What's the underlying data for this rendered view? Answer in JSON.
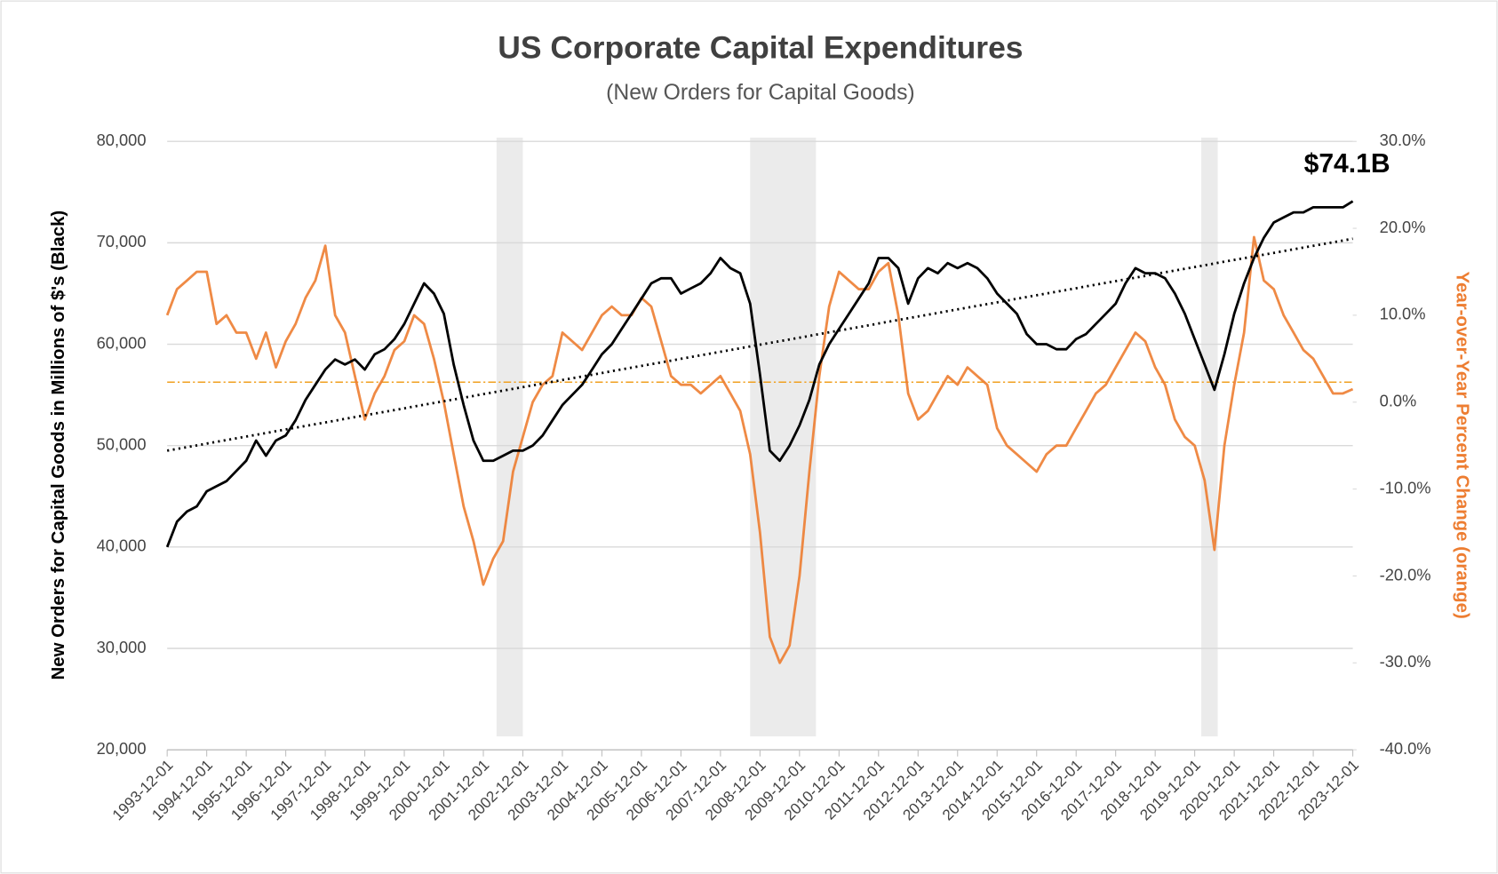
{
  "chart_data": {
    "type": "line",
    "title": "US Corporate Capital Expenditures",
    "subtitle": "(New Orders for Capital Goods)",
    "ylabel": "New Orders for Capital Goods in Millions of $'s (Black)",
    "y2label": "Year-over-Year Percent Change (orange)",
    "annotation": "$74.1B",
    "ylim": [
      20000,
      80000
    ],
    "yticks": [
      {
        "value": 20000,
        "label": "20,000"
      },
      {
        "value": 30000,
        "label": "30,000"
      },
      {
        "value": 40000,
        "label": "40,000"
      },
      {
        "value": 50000,
        "label": "50,000"
      },
      {
        "value": 60000,
        "label": "60,000"
      },
      {
        "value": 70000,
        "label": "70,000"
      },
      {
        "value": 80000,
        "label": "80,000"
      }
    ],
    "y2lim": [
      -40,
      30
    ],
    "y2ticks": [
      {
        "value": -40,
        "label": "-40.0%"
      },
      {
        "value": -30,
        "label": "-30.0%"
      },
      {
        "value": -20,
        "label": "-20.0%"
      },
      {
        "value": -10,
        "label": "-10.0%"
      },
      {
        "value": 0,
        "label": "0.0%"
      },
      {
        "value": 10,
        "label": "10.0%"
      },
      {
        "value": 20,
        "label": "20.0%"
      },
      {
        "value": 30,
        "label": "30.0%"
      }
    ],
    "xlim": [
      "1993-12-01",
      "2023-12-01"
    ],
    "xticks": [
      "1993-12-01",
      "1994-12-01",
      "1995-12-01",
      "1996-12-01",
      "1997-12-01",
      "1998-12-01",
      "1999-12-01",
      "2000-12-01",
      "2001-12-01",
      "2002-12-01",
      "2003-12-01",
      "2004-12-01",
      "2005-12-01",
      "2006-12-01",
      "2007-12-01",
      "2008-12-01",
      "2009-12-01",
      "2010-12-01",
      "2011-12-01",
      "2012-12-01",
      "2013-12-01",
      "2014-12-01",
      "2015-12-01",
      "2016-12-01",
      "2017-12-01",
      "2018-12-01",
      "2019-12-01",
      "2020-12-01",
      "2021-12-01",
      "2022-12-01",
      "2023-12-01"
    ],
    "grid": true,
    "x": [
      "1993-12-01",
      "1994-03-01",
      "1994-06-01",
      "1994-09-01",
      "1994-12-01",
      "1995-03-01",
      "1995-06-01",
      "1995-09-01",
      "1995-12-01",
      "1996-03-01",
      "1996-06-01",
      "1996-09-01",
      "1996-12-01",
      "1997-03-01",
      "1997-06-01",
      "1997-09-01",
      "1997-12-01",
      "1998-03-01",
      "1998-06-01",
      "1998-09-01",
      "1998-12-01",
      "1999-03-01",
      "1999-06-01",
      "1999-09-01",
      "1999-12-01",
      "2000-03-01",
      "2000-06-01",
      "2000-09-01",
      "2000-12-01",
      "2001-03-01",
      "2001-06-01",
      "2001-09-01",
      "2001-12-01",
      "2002-03-01",
      "2002-06-01",
      "2002-09-01",
      "2002-12-01",
      "2003-03-01",
      "2003-06-01",
      "2003-09-01",
      "2003-12-01",
      "2004-03-01",
      "2004-06-01",
      "2004-09-01",
      "2004-12-01",
      "2005-03-01",
      "2005-06-01",
      "2005-09-01",
      "2005-12-01",
      "2006-03-01",
      "2006-06-01",
      "2006-09-01",
      "2006-12-01",
      "2007-03-01",
      "2007-06-01",
      "2007-09-01",
      "2007-12-01",
      "2008-03-01",
      "2008-06-01",
      "2008-09-01",
      "2008-12-01",
      "2009-03-01",
      "2009-06-01",
      "2009-09-01",
      "2009-12-01",
      "2010-03-01",
      "2010-06-01",
      "2010-09-01",
      "2010-12-01",
      "2011-03-01",
      "2011-06-01",
      "2011-09-01",
      "2011-12-01",
      "2012-03-01",
      "2012-06-01",
      "2012-09-01",
      "2012-12-01",
      "2013-03-01",
      "2013-06-01",
      "2013-09-01",
      "2013-12-01",
      "2014-03-01",
      "2014-06-01",
      "2014-09-01",
      "2014-12-01",
      "2015-03-01",
      "2015-06-01",
      "2015-09-01",
      "2015-12-01",
      "2016-03-01",
      "2016-06-01",
      "2016-09-01",
      "2016-12-01",
      "2017-03-01",
      "2017-06-01",
      "2017-09-01",
      "2017-12-01",
      "2018-03-01",
      "2018-06-01",
      "2018-09-01",
      "2018-12-01",
      "2019-03-01",
      "2019-06-01",
      "2019-09-01",
      "2019-12-01",
      "2020-03-01",
      "2020-06-01",
      "2020-09-01",
      "2020-12-01",
      "2021-03-01",
      "2021-06-01",
      "2021-09-01",
      "2021-12-01",
      "2022-03-01",
      "2022-06-01",
      "2022-09-01",
      "2022-12-01",
      "2023-03-01",
      "2023-06-01",
      "2023-09-01",
      "2023-12-01"
    ],
    "series": [
      {
        "color": "#000000",
        "values": [
          40000,
          42500,
          43500,
          44000,
          45500,
          46000,
          46500,
          47500,
          48500,
          50500,
          49000,
          50500,
          51000,
          52500,
          54500,
          56000,
          57500,
          58500,
          58000,
          58500,
          57500,
          59000,
          59500,
          60500,
          62000,
          64000,
          66000,
          65000,
          63000,
          58000,
          54000,
          50500,
          48500,
          48500,
          49000,
          49500,
          49500,
          50000,
          51000,
          52500,
          54000,
          55000,
          56000,
          57500,
          59000,
          60000,
          61500,
          63000,
          64500,
          66000,
          66500,
          66500,
          65000,
          65500,
          66000,
          67000,
          68500,
          67500,
          67000,
          64000,
          57000,
          49500,
          48500,
          50000,
          52000,
          54500,
          58000,
          60000,
          61500,
          63000,
          64500,
          66000,
          68500,
          68500,
          67500,
          64000,
          66500,
          67500,
          67000,
          68000,
          67500,
          68000,
          67500,
          66500,
          65000,
          64000,
          63000,
          61000,
          60000,
          60000,
          59500,
          59500,
          60500,
          61000,
          62000,
          63000,
          64000,
          66000,
          67500,
          67000,
          67000,
          66500,
          65000,
          63000,
          60500,
          58000,
          55500,
          59000,
          63000,
          66000,
          68500,
          70500,
          72000,
          72500,
          73000,
          73000,
          73500,
          73500,
          73500,
          73500,
          74100
        ]
      },
      {
        "color": "#ed7d31",
        "axis": "y2",
        "values": [
          10,
          13,
          14,
          15,
          15,
          9,
          10,
          8,
          8,
          5,
          8,
          4,
          7,
          9,
          12,
          14,
          18,
          10,
          8,
          3,
          -2,
          1,
          3,
          6,
          7,
          10,
          9,
          5,
          0,
          -6,
          -12,
          -16,
          -21,
          -18,
          -16,
          -8,
          -4,
          0,
          2,
          3,
          8,
          7,
          6,
          8,
          10,
          11,
          10,
          10,
          12,
          11,
          7,
          3,
          2,
          2,
          1,
          2,
          3,
          1,
          -1,
          -6,
          -15,
          -27,
          -30,
          -28,
          -20,
          -8,
          3,
          11,
          15,
          14,
          13,
          13,
          15,
          16,
          10,
          1,
          -2,
          -1,
          1,
          3,
          2,
          4,
          3,
          2,
          -3,
          -5,
          -6,
          -7,
          -8,
          -6,
          -5,
          -5,
          -3,
          -1,
          1,
          2,
          4,
          6,
          8,
          7,
          4,
          2,
          -2,
          -4,
          -5,
          -9,
          -17,
          -5,
          2,
          8,
          19,
          14,
          13,
          10,
          8,
          6,
          5,
          3,
          1,
          1,
          1.5
        ]
      }
    ],
    "trendline": {
      "x": [
        "1993-12-01",
        "2023-12-01"
      ],
      "values": [
        49500,
        70400
      ],
      "color": "#000000"
    },
    "reference_line": {
      "axis": "y2",
      "value": 2.3,
      "color": "#f0a020"
    },
    "shaded_regions": [
      [
        "2002-04-01",
        "2002-12-01"
      ],
      [
        "2008-09-01",
        "2010-05-01"
      ],
      [
        "2020-02-01",
        "2020-07-01"
      ]
    ]
  }
}
